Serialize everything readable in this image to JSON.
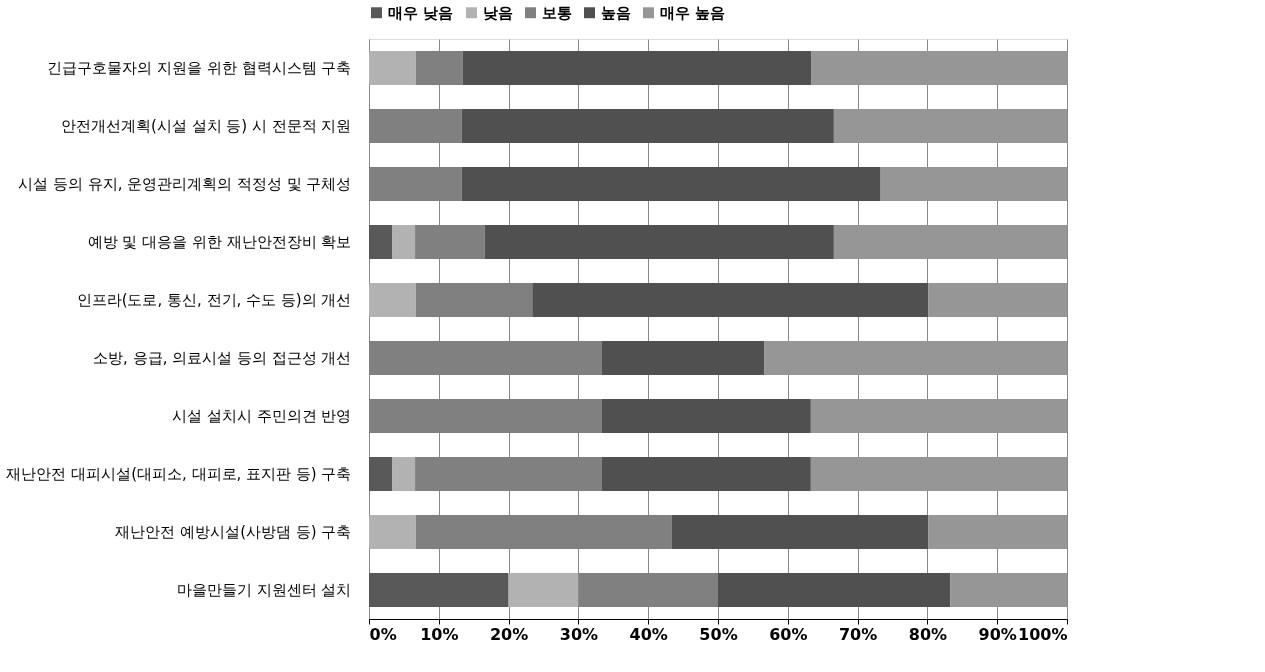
{
  "chart_data": {
    "type": "bar",
    "orientation": "horizontal",
    "stacked": true,
    "categories": [
      "긴급구호물자의 지원을 위한 협력시스템 구축",
      "안전개선계획(시설 설치 등) 시 전문적 지원",
      "시설 등의 유지, 운영관리계획의 적정성 및 구체성",
      "예방 및 대응을 위한 재난안전장비 확보",
      "인프라(도로, 통신, 전기, 수도 등)의 개선",
      "소방, 응급, 의료시설 등의 접근성 개선",
      "시설 설치시 주민의견 반영",
      "재난안전 대피시설(대피소, 대피로, 표지판 등) 구축",
      "재난안전 예방시설(사방댐 등) 구축",
      "마을만들기 지원센터 설치"
    ],
    "series": [
      {
        "name": "매우 낮음",
        "color": "#595959",
        "values": [
          0,
          0,
          0,
          3.3,
          0,
          0,
          0,
          3.3,
          0,
          20
        ]
      },
      {
        "name": "낮음",
        "color": "#b2b2b2",
        "values": [
          6.7,
          0,
          0,
          3.3,
          6.7,
          0,
          0,
          3.3,
          6.7,
          10
        ]
      },
      {
        "name": "보통",
        "color": "#808080",
        "values": [
          6.7,
          13.3,
          13.3,
          10,
          16.7,
          33.3,
          33.3,
          26.7,
          36.7,
          20
        ]
      },
      {
        "name": "높음",
        "color": "#505050",
        "values": [
          50,
          53.3,
          60,
          50,
          56.7,
          23.3,
          30,
          30,
          36.7,
          33.3
        ]
      },
      {
        "name": "매우 높음",
        "color": "#969696",
        "values": [
          36.7,
          33.4,
          26.7,
          33.4,
          19.9,
          43.4,
          36.7,
          36.7,
          19.9,
          16.7
        ]
      }
    ],
    "xlim": [
      0,
      100
    ],
    "xticks": [
      {
        "value": 0,
        "label": "0%"
      },
      {
        "value": 10,
        "label": "10%"
      },
      {
        "value": 20,
        "label": "20%"
      },
      {
        "value": 30,
        "label": "30%"
      },
      {
        "value": 40,
        "label": "40%"
      },
      {
        "value": 50,
        "label": "50%"
      },
      {
        "value": 60,
        "label": "60%"
      },
      {
        "value": 70,
        "label": "70%"
      },
      {
        "value": 80,
        "label": "80%"
      },
      {
        "value": 90,
        "label": "90%"
      },
      {
        "value": 100,
        "label": "100%"
      }
    ],
    "grid": "x",
    "legend": "top"
  }
}
